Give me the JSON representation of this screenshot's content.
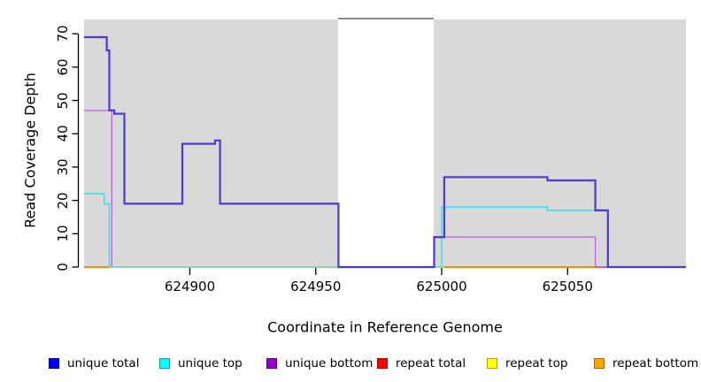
{
  "figure": {
    "xlabel": "Coordinate in Reference Genome",
    "ylabel": "Read Coverage Depth"
  },
  "chart_data": {
    "type": "line",
    "subtype": "step-coverage",
    "title": "",
    "xlabel": "Coordinate in Reference Genome",
    "ylabel": "Read Coverage Depth",
    "xlim": [
      624858,
      625097
    ],
    "ylim": [
      0,
      74.3
    ],
    "grid": false,
    "plot_bg_color": "#d9d9d9",
    "x_ticks": [
      624900,
      624950,
      625000,
      625050
    ],
    "x_tick_labels": [
      "624900",
      "624950",
      "625000",
      "625050"
    ],
    "y_ticks": [
      0,
      10,
      20,
      30,
      40,
      50,
      60,
      70
    ],
    "y_tick_labels": [
      "0",
      "10",
      "20",
      "30",
      "40",
      "50",
      "60",
      "70"
    ],
    "masked_region": {
      "x_start": 624959,
      "x_end": 624997,
      "color": "#ffffff",
      "top_line_color": "#8a8a8a"
    },
    "series": [
      {
        "name": "unique bottom",
        "line_color": "#bb6bdd",
        "line_width": 1.4,
        "points": [
          [
            624858,
            47
          ],
          [
            624869,
            0
          ],
          [
            624997,
            9
          ],
          [
            625061,
            0
          ]
        ]
      },
      {
        "name": "unique top",
        "line_color": "#3fdef0",
        "line_width": 1.6,
        "points": [
          [
            624858,
            22
          ],
          [
            624866,
            19
          ],
          [
            624868,
            0
          ],
          [
            625000,
            18
          ],
          [
            625042,
            17
          ],
          [
            625066,
            0
          ]
        ]
      },
      {
        "name": "unique total",
        "line_color": "#4b38de",
        "line_width": 2.2,
        "points": [
          [
            624858,
            69
          ],
          [
            624867,
            65
          ],
          [
            624868,
            47
          ],
          [
            624870,
            46
          ],
          [
            624874,
            19
          ],
          [
            624897,
            37
          ],
          [
            624910,
            38
          ],
          [
            624912,
            19
          ],
          [
            624959,
            0
          ],
          [
            624997,
            9
          ],
          [
            625001,
            27
          ],
          [
            625042,
            26
          ],
          [
            625061,
            17
          ],
          [
            625066,
            0
          ]
        ]
      },
      {
        "name": "repeat total",
        "line_color": "#ff0000",
        "line_width": 1.6,
        "points": [
          [
            624858,
            0
          ]
        ]
      },
      {
        "name": "repeat top",
        "line_color": "#ffff00",
        "line_width": 1.6,
        "points": [
          [
            624858,
            0
          ]
        ]
      },
      {
        "name": "repeat bottom",
        "line_color": "#ff8c00",
        "line_width": 2,
        "points": [
          [
            624858,
            0
          ]
        ]
      }
    ],
    "zero_line_segments": [
      {
        "color": "#ff8c00",
        "x_start": 624858,
        "x_end": 624868,
        "width": 2.0
      },
      {
        "color": "#97d795",
        "x_start": 624868,
        "x_end": 624959,
        "width": 1.6
      },
      {
        "color": "#97d795",
        "x_start": 624997,
        "x_end": 625001,
        "width": 1.6
      },
      {
        "color": "#ff8c00",
        "x_start": 625001,
        "x_end": 625061,
        "width": 2.0
      },
      {
        "color": "#e8517e",
        "x_start": 625061,
        "x_end": 625097,
        "width": 1.8
      }
    ],
    "legend": {
      "position": "bottom",
      "entries": [
        {
          "label": "unique total",
          "color": "#0000ff"
        },
        {
          "label": "unique top",
          "color": "#00ffff"
        },
        {
          "label": "unique bottom",
          "color": "#9400d3"
        },
        {
          "label": "repeat total",
          "color": "#ff0000"
        },
        {
          "label": "repeat top",
          "color": "#ffff00"
        },
        {
          "label": "repeat bottom",
          "color": "#ffa500"
        }
      ]
    }
  }
}
